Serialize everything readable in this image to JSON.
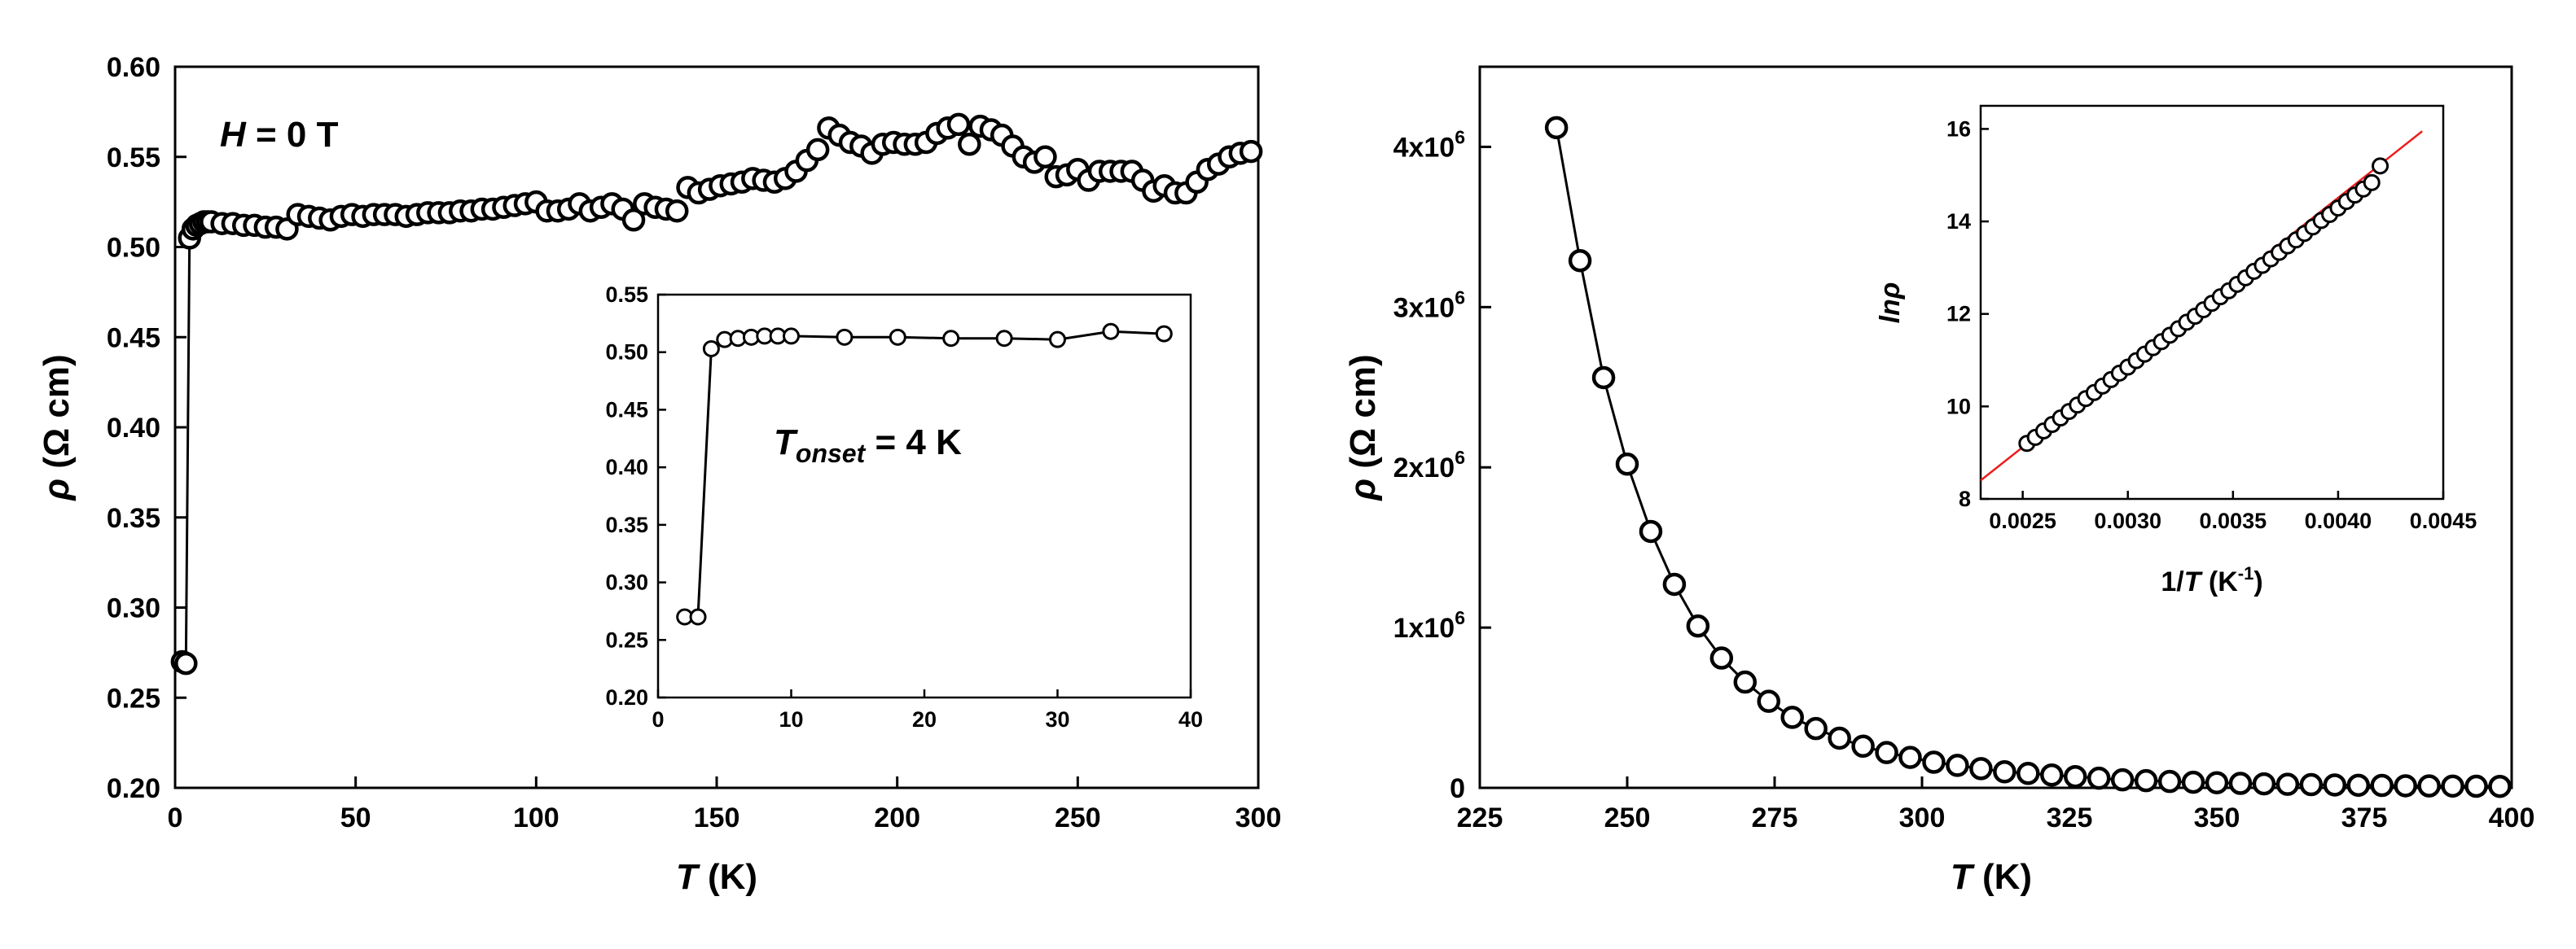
{
  "chart_data": [
    {
      "id": "left-main",
      "type": "scatter",
      "xlabel_italic": "T",
      "xlabel_rest": " (K)",
      "ylabel_symbol": "ρ",
      "ylabel_rest": " (Ω cm)",
      "xlim": [
        0,
        300
      ],
      "ylim": [
        0.2,
        0.6
      ],
      "xticks": [
        0,
        50,
        100,
        150,
        200,
        250,
        300
      ],
      "xtick_labels": [
        "0",
        "50",
        "100",
        "150",
        "200",
        "250",
        "300"
      ],
      "yticks": [
        0.2,
        0.25,
        0.3,
        0.35,
        0.4,
        0.45,
        0.5,
        0.55,
        0.6
      ],
      "ytick_labels": [
        "0.20",
        "0.25",
        "0.30",
        "0.35",
        "0.40",
        "0.45",
        "0.50",
        "0.55",
        "0.60"
      ],
      "annotation": {
        "italic": "H",
        "rest": " = 0 T"
      },
      "series": [
        {
          "name": "rho_H0",
          "x": [
            2,
            3,
            4,
            5,
            6,
            7,
            8,
            9,
            10,
            13,
            16,
            19,
            22,
            25,
            28,
            31,
            34,
            37,
            40,
            43,
            46,
            49,
            52,
            55,
            58,
            61,
            64,
            67,
            70,
            73,
            76,
            79,
            82,
            85,
            88,
            91,
            94,
            97,
            100,
            103,
            106,
            109,
            112,
            115,
            118,
            121,
            124,
            127,
            130,
            133,
            136,
            139,
            142,
            145,
            148,
            151,
            154,
            157,
            160,
            163,
            166,
            169,
            172,
            175,
            178,
            181,
            184,
            187,
            190,
            193,
            196,
            199,
            202,
            205,
            208,
            211,
            214,
            217,
            220,
            223,
            226,
            229,
            232,
            235,
            238,
            241,
            244,
            247,
            250,
            253,
            256,
            259,
            262,
            265,
            268,
            271,
            274,
            277,
            280,
            283,
            286,
            289,
            292,
            295,
            298
          ],
          "y": [
            0.27,
            0.269,
            0.505,
            0.51,
            0.512,
            0.513,
            0.514,
            0.514,
            0.514,
            0.513,
            0.513,
            0.512,
            0.512,
            0.511,
            0.511,
            0.51,
            0.518,
            0.517,
            0.516,
            0.515,
            0.517,
            0.518,
            0.517,
            0.518,
            0.518,
            0.518,
            0.517,
            0.518,
            0.519,
            0.519,
            0.519,
            0.52,
            0.52,
            0.521,
            0.521,
            0.522,
            0.523,
            0.524,
            0.525,
            0.52,
            0.52,
            0.521,
            0.524,
            0.52,
            0.522,
            0.524,
            0.521,
            0.515,
            0.524,
            0.522,
            0.521,
            0.52,
            0.533,
            0.53,
            0.532,
            0.534,
            0.535,
            0.536,
            0.538,
            0.537,
            0.536,
            0.538,
            0.542,
            0.548,
            0.554,
            0.566,
            0.562,
            0.558,
            0.556,
            0.552,
            0.557,
            0.558,
            0.557,
            0.557,
            0.558,
            0.563,
            0.566,
            0.568,
            0.557,
            0.567,
            0.565,
            0.562,
            0.556,
            0.55,
            0.547,
            0.55,
            0.539,
            0.54,
            0.543,
            0.537,
            0.542,
            0.542,
            0.542,
            0.542,
            0.537,
            0.531,
            0.534,
            0.53,
            0.53,
            0.536,
            0.543,
            0.546,
            0.55,
            0.552,
            0.553
          ]
        }
      ]
    },
    {
      "id": "left-inset",
      "type": "line",
      "xlim": [
        0,
        40
      ],
      "ylim": [
        0.2,
        0.55
      ],
      "xticks": [
        0,
        10,
        20,
        30,
        40
      ],
      "xtick_labels": [
        "0",
        "10",
        "20",
        "30",
        "40"
      ],
      "yticks": [
        0.2,
        0.25,
        0.3,
        0.35,
        0.4,
        0.45,
        0.5,
        0.55
      ],
      "ytick_labels": [
        "0.20",
        "0.25",
        "0.30",
        "0.35",
        "0.40",
        "0.45",
        "0.50",
        "0.55"
      ],
      "annotation": {
        "italic": "T",
        "sub": "onset",
        "rest": " = 4 K"
      },
      "series": [
        {
          "name": "rho_lowT",
          "x": [
            2,
            3,
            4,
            5,
            6,
            7,
            8,
            9,
            10,
            14,
            18,
            22,
            26,
            30,
            34,
            38
          ],
          "y": [
            0.27,
            0.27,
            0.503,
            0.511,
            0.512,
            0.513,
            0.514,
            0.514,
            0.514,
            0.513,
            0.513,
            0.512,
            0.512,
            0.511,
            0.518,
            0.516
          ]
        }
      ]
    },
    {
      "id": "right-main",
      "type": "line",
      "xlabel_italic": "T",
      "xlabel_rest": " (K)",
      "ylabel_symbol": "ρ",
      "ylabel_rest": " (Ω cm)",
      "xlim": [
        225,
        400
      ],
      "ylim": [
        0,
        4500000
      ],
      "xticks": [
        225,
        250,
        275,
        300,
        325,
        350,
        375,
        400
      ],
      "xtick_labels": [
        "225",
        "250",
        "275",
        "300",
        "325",
        "350",
        "375",
        "400"
      ],
      "yticks": [
        0,
        1000000,
        2000000,
        3000000,
        4000000
      ],
      "ytick_labels": [
        "0",
        "1x10",
        "2x10",
        "3x10",
        "4x10"
      ],
      "ytick_exponent": "6",
      "series": [
        {
          "name": "rho_highT",
          "x": [
            238,
            242,
            246,
            250,
            254,
            258,
            262,
            266,
            270,
            274,
            278,
            282,
            286,
            290,
            294,
            298,
            302,
            306,
            310,
            314,
            318,
            322,
            326,
            330,
            334,
            338,
            342,
            346,
            350,
            354,
            358,
            362,
            366,
            370,
            374,
            378,
            382,
            386,
            390,
            394,
            398
          ],
          "y": [
            4120000,
            3290000,
            2560000,
            2020000,
            1600000,
            1270000,
            1010000,
            810000,
            660000,
            540000,
            440000,
            370000,
            310000,
            260000,
            220000,
            190000,
            160000,
            140000,
            120000,
            100000,
            90000,
            80000,
            70000,
            60000,
            50000,
            45000,
            40000,
            35000,
            32000,
            28000,
            25000,
            22000,
            20000,
            18000,
            16000,
            15000,
            13000,
            12000,
            11000,
            10000,
            9000
          ]
        }
      ]
    },
    {
      "id": "right-inset",
      "type": "scatter",
      "xlabel_prefix": "1/",
      "xlabel_italic": "T",
      "xlabel_rest": " (K",
      "xlabel_sup": "-1",
      "xlabel_close": ")",
      "ylabel_text": "ln",
      "ylabel_symbol": "ρ",
      "xlim": [
        0.0023,
        0.0045
      ],
      "ylim": [
        8,
        16.5
      ],
      "xticks": [
        0.0025,
        0.003,
        0.0035,
        0.004,
        0.0045
      ],
      "xtick_labels": [
        "0.0025",
        "0.0030",
        "0.0035",
        "0.0040",
        "0.0045"
      ],
      "yticks": [
        8,
        10,
        12,
        14,
        16
      ],
      "ytick_labels": [
        "8",
        "10",
        "12",
        "14",
        "16"
      ],
      "fit": {
        "x0": 0.0023,
        "y0": 8.4,
        "x1": 0.0044,
        "y1": 15.95
      },
      "series": [
        {
          "name": "ln_rho_vs_invT",
          "x": [
            0.00252,
            0.00256,
            0.0026,
            0.00264,
            0.00268,
            0.00272,
            0.00276,
            0.0028,
            0.00284,
            0.00288,
            0.00292,
            0.00296,
            0.003,
            0.00304,
            0.00308,
            0.00312,
            0.00316,
            0.0032,
            0.00324,
            0.00328,
            0.00332,
            0.00336,
            0.0034,
            0.00344,
            0.00348,
            0.00352,
            0.00356,
            0.0036,
            0.00364,
            0.00368,
            0.00372,
            0.00376,
            0.0038,
            0.00384,
            0.00388,
            0.00392,
            0.00396,
            0.004,
            0.00404,
            0.00408,
            0.00412,
            0.00416,
            0.0042
          ],
          "y": [
            9.2,
            9.33,
            9.47,
            9.61,
            9.75,
            9.89,
            10.03,
            10.17,
            10.3,
            10.44,
            10.58,
            10.72,
            10.85,
            10.99,
            11.13,
            11.27,
            11.4,
            11.54,
            11.68,
            11.82,
            11.95,
            12.09,
            12.23,
            12.37,
            12.5,
            12.64,
            12.78,
            12.92,
            13.05,
            13.19,
            13.33,
            13.47,
            13.6,
            13.74,
            13.88,
            14.02,
            14.15,
            14.29,
            14.43,
            14.57,
            14.7,
            14.84,
            15.2
          ]
        }
      ]
    }
  ]
}
